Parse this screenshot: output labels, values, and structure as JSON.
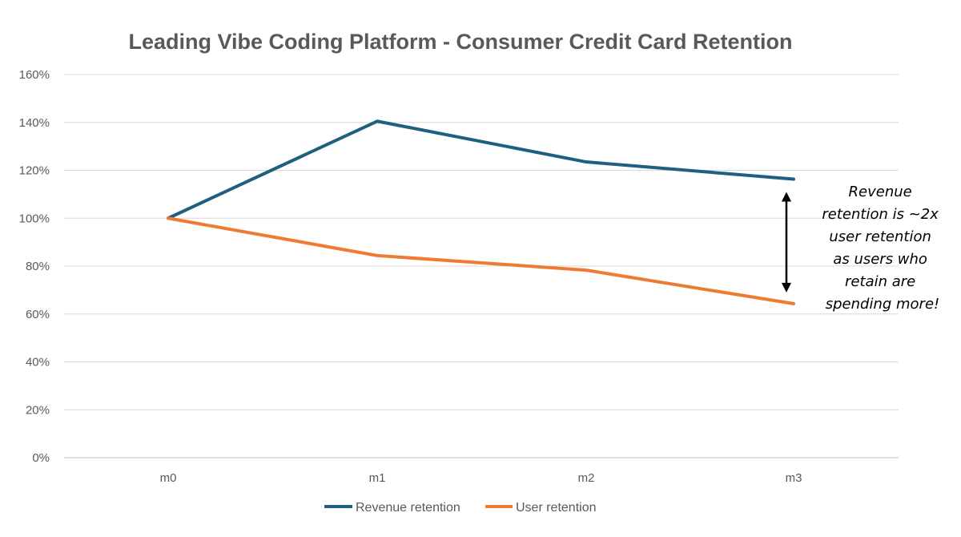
{
  "chart_data": {
    "type": "line",
    "title": "Leading Vibe Coding Platform - Consumer Credit Card Retention",
    "categories": [
      "m0",
      "m1",
      "m2",
      "m3"
    ],
    "series": [
      {
        "name": "Revenue retention",
        "values": [
          100,
          140.5,
          123.5,
          116.3
        ],
        "color": "#1f5f7f"
      },
      {
        "name": "User retention",
        "values": [
          100,
          84.4,
          78.3,
          64.3
        ],
        "color": "#ef7a34"
      }
    ],
    "ylim": [
      0,
      160
    ],
    "yticks": [
      0,
      20,
      40,
      60,
      80,
      100,
      120,
      140,
      160
    ],
    "ytick_labels": [
      "0%",
      "20%",
      "40%",
      "60%",
      "80%",
      "100%",
      "120%",
      "140%",
      "160%"
    ],
    "xlabel": "",
    "ylabel": "",
    "grid": true,
    "legend": "bottom",
    "annotation": {
      "lines": [
        "Revenue",
        "retention is ~2x",
        "user retention",
        "as users who",
        "retain are",
        "spending more!"
      ],
      "arrow": "double-headed arrow at m3 spanning the gap between the two series"
    },
    "gridline_color": "#d9d9d9",
    "text_color": "#595959"
  }
}
